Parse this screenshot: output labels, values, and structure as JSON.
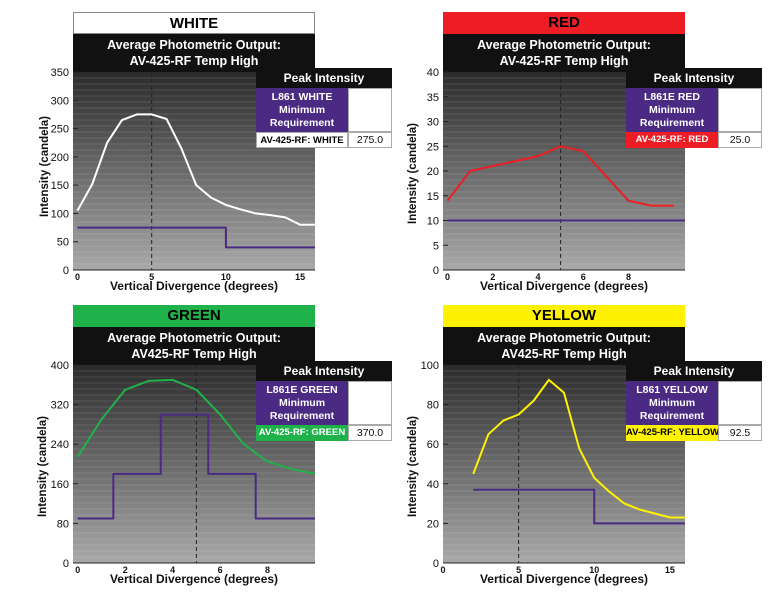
{
  "charts": [
    {
      "id": "white",
      "header": "WHITE",
      "title_line1": "Average Photometric Output:",
      "title_line2": "AV-425-RF Temp High",
      "legend": {
        "heading": "Peak Intensity",
        "requirement": [
          "L861 WHITE",
          "Minimum",
          "Requirement"
        ],
        "product_label": "AV-425-RF: WHITE",
        "peak_value": "275.0"
      },
      "colors": {
        "header_bg": "#ffffff",
        "header_text": "#000000",
        "product_bg": "#ffffff",
        "product_text": "#000000",
        "curve": "#ffffff",
        "requirement": "#4b2a84"
      }
    },
    {
      "id": "red",
      "header": "RED",
      "title_line1": "Average Photometric Output:",
      "title_line2": "AV-425-RF Temp High",
      "legend": {
        "heading": "Peak Intensity",
        "requirement": [
          "L861E RED",
          "Minimum",
          "Requirement"
        ],
        "product_label": "AV-425-RF: RED",
        "peak_value": "25.0"
      },
      "colors": {
        "header_bg": "#ee1c24",
        "header_text": "#000000",
        "product_bg": "#ee1c24",
        "product_text": "#ffffff",
        "curve": "#ee1c24",
        "requirement": "#4b2a84"
      }
    },
    {
      "id": "green",
      "header": "GREEN",
      "title_line1": "Average Photometric Output:",
      "title_line2": "AV425-RF Temp High",
      "legend": {
        "heading": "Peak Intensity",
        "requirement": [
          "L861E GREEN",
          "Minimum",
          "Requirement"
        ],
        "product_label": "AV-425-RF: GREEN",
        "peak_value": "370.0"
      },
      "colors": {
        "header_bg": "#20b24a",
        "header_text": "#000000",
        "product_bg": "#20b24a",
        "product_text": "#ffffff",
        "curve": "#20b24a",
        "requirement": "#4b2a84"
      }
    },
    {
      "id": "yellow",
      "header": "YELLOW",
      "title_line1": "Average Photometric Output:",
      "title_line2": "AV425-RF Temp High",
      "legend": {
        "heading": "Peak Intensity",
        "requirement": [
          "L861 YELLOW",
          "Minimum",
          "Requirement"
        ],
        "product_label": "AV-425-RF: YELLOW",
        "peak_value": "92.5"
      },
      "colors": {
        "header_bg": "#fff200",
        "header_text": "#000000",
        "product_bg": "#fff200",
        "product_text": "#000000",
        "curve": "#fff200",
        "requirement": "#4b2a84"
      }
    }
  ],
  "chart_data": [
    {
      "type": "line",
      "title": "WHITE",
      "xlabel": "Vertical Divergence (degrees)",
      "ylabel": "Intensity (candela)",
      "xlim": [
        -0.3,
        16
      ],
      "ylim": [
        0,
        350
      ],
      "xticks": [
        0,
        5,
        10,
        15
      ],
      "yticks": [
        0,
        50,
        100,
        150,
        200,
        250,
        300,
        350
      ],
      "reference_line_x": 5,
      "series": [
        {
          "name": "AV-425-RF: WHITE",
          "x": [
            0,
            1,
            2,
            3,
            4,
            5,
            6,
            7,
            8,
            9,
            10,
            11,
            12,
            13,
            14,
            15,
            16
          ],
          "y": [
            105,
            152,
            225,
            265,
            275,
            275,
            267,
            215,
            150,
            128,
            115,
            107,
            100,
            97,
            93,
            80,
            80
          ]
        },
        {
          "name": "L861 WHITE Minimum Requirement",
          "x": [
            0,
            10,
            10,
            16
          ],
          "y": [
            75,
            75,
            40,
            40
          ]
        }
      ]
    },
    {
      "type": "line",
      "title": "RED",
      "xlabel": "Vertical Divergence (degrees)",
      "ylabel": "Intensity (candela)",
      "xlim": [
        -0.2,
        10.5
      ],
      "ylim": [
        0,
        40
      ],
      "xticks": [
        0,
        2,
        4,
        6,
        8
      ],
      "yticks": [
        0,
        5,
        10,
        15,
        20,
        25,
        30,
        35,
        40
      ],
      "reference_line_x": 5,
      "series": [
        {
          "name": "AV-425-RF: RED",
          "x": [
            0,
            1,
            2,
            3,
            4,
            5,
            6,
            7,
            8,
            9,
            10
          ],
          "y": [
            14,
            20,
            21,
            22,
            23,
            25,
            24,
            19,
            14,
            13,
            13
          ]
        },
        {
          "name": "L861E RED Minimum Requirement",
          "x": [
            0,
            10.5
          ],
          "y": [
            10,
            10
          ]
        }
      ]
    },
    {
      "type": "line",
      "title": "GREEN",
      "xlabel": "Vertical Divergence (degrees)",
      "ylabel": "Intensity (candela)",
      "xlim": [
        -0.2,
        10
      ],
      "ylim": [
        0,
        400
      ],
      "xticks": [
        0,
        2,
        4,
        6,
        8
      ],
      "yticks": [
        0,
        80,
        160,
        240,
        320,
        400
      ],
      "reference_line_x": 5,
      "series": [
        {
          "name": "AV-425-RF: GREEN",
          "x": [
            0,
            1,
            2,
            3,
            4,
            5,
            6,
            7,
            8,
            9,
            10
          ],
          "y": [
            215,
            290,
            350,
            368,
            370,
            350,
            300,
            240,
            205,
            190,
            180
          ]
        },
        {
          "name": "L861E GREEN Minimum Requirement",
          "x": [
            0,
            1.5,
            1.5,
            3.5,
            3.5,
            5.5,
            5.5,
            7.5,
            7.5,
            10
          ],
          "y": [
            90,
            90,
            180,
            180,
            300,
            300,
            180,
            180,
            90,
            90
          ]
        }
      ]
    },
    {
      "type": "line",
      "title": "YELLOW",
      "xlabel": "Vertical Divergence (degrees)",
      "ylabel": "Intensity (candela)",
      "xlim": [
        0,
        16
      ],
      "ylim": [
        0,
        100
      ],
      "xticks": [
        0,
        5,
        10,
        15
      ],
      "yticks": [
        0,
        20,
        40,
        60,
        80,
        100
      ],
      "reference_line_x": 5,
      "series": [
        {
          "name": "AV-425-RF: YELLOW",
          "x": [
            2,
            3,
            4,
            5,
            6,
            7,
            8,
            9,
            10,
            11,
            12,
            13,
            14,
            15,
            16
          ],
          "y": [
            45,
            65,
            72,
            75,
            82,
            92.5,
            86,
            58,
            43,
            36,
            30,
            27,
            25,
            23,
            23
          ]
        },
        {
          "name": "L861 YELLOW Minimum Requirement",
          "x": [
            2,
            10,
            10,
            16
          ],
          "y": [
            37,
            37,
            20,
            20
          ]
        }
      ]
    }
  ]
}
